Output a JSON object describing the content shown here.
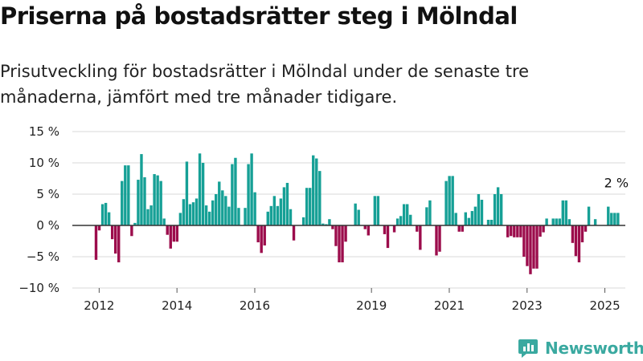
{
  "header": {
    "title": "Priserna på bostadsrätter steg i Mölndal",
    "subtitle": "Prisutveckling för bostadsrätter i Mölndal under de senaste tre månaderna, jämfört med tre månader tidigare."
  },
  "brand": {
    "name": "Newsworthy",
    "icon": "newsworthy-logo-icon",
    "color": "#3aa9a0"
  },
  "colors": {
    "positive": "#16a096",
    "negative": "#9c0d4c",
    "grid": "#d9d9d9",
    "zero": "#333333"
  },
  "chart_data": {
    "type": "bar",
    "title": "",
    "xlabel": "",
    "ylabel": "",
    "ylim": [
      -10,
      15
    ],
    "y_ticks": [
      15,
      10,
      5,
      0,
      -5,
      -10
    ],
    "y_tick_labels": [
      "15 %",
      "10 %",
      "5 %",
      "0 %",
      "−5 %",
      "−10 %"
    ],
    "x_ticks": [
      2012,
      2014,
      2016,
      2019,
      2021,
      2023,
      2025
    ],
    "x_tick_labels": [
      "2012",
      "2014",
      "2016",
      "2019",
      "2021",
      "2023",
      "2025"
    ],
    "grid": true,
    "start_year": 2011.92,
    "months_per_bar": 1,
    "annotation": {
      "text": "2 %",
      "target": "last"
    },
    "values": [
      -5.5,
      -0.8,
      3.4,
      3.6,
      2.1,
      -2.2,
      -4.5,
      -5.9,
      7.1,
      9.6,
      9.6,
      -1.7,
      0.4,
      7.3,
      11.4,
      7.7,
      2.6,
      3.2,
      8.2,
      8.0,
      7.1,
      1.1,
      -1.5,
      -3.7,
      -2.6,
      -2.6,
      2.0,
      4.2,
      10.2,
      3.4,
      3.7,
      4.3,
      11.5,
      10.0,
      3.2,
      2.2,
      4.0,
      5.0,
      7.0,
      5.6,
      4.7,
      3.0,
      9.8,
      10.8,
      2.8,
      0.0,
      2.8,
      9.8,
      11.5,
      5.3,
      -2.7,
      -4.4,
      -3.2,
      2.2,
      3.1,
      4.7,
      3.1,
      4.3,
      6.1,
      6.8,
      2.6,
      -2.4,
      0.0,
      0.0,
      1.3,
      6.0,
      6.0,
      11.2,
      10.7,
      8.7,
      0.3,
      0.2,
      1.0,
      -0.6,
      -3.3,
      -5.9,
      -5.9,
      -2.6,
      0.0,
      0.0,
      3.5,
      2.5,
      0.0,
      -0.6,
      -1.6,
      0.0,
      4.7,
      4.7,
      0.0,
      -1.4,
      -3.6,
      0.0,
      -1.1,
      1.1,
      1.5,
      3.4,
      3.4,
      1.7,
      0.0,
      -1.0,
      -3.9,
      0.0,
      2.9,
      4.0,
      0.0,
      -4.8,
      -4.2,
      0.0,
      7.1,
      7.9,
      7.9,
      2.0,
      -1.0,
      -1.0,
      2.1,
      1.2,
      2.3,
      3.0,
      5.0,
      4.1,
      0.0,
      0.9,
      0.9,
      5.0,
      6.1,
      5.0,
      0.0,
      -1.9,
      -1.7,
      -1.9,
      -1.9,
      -1.9,
      -5.0,
      -6.5,
      -7.8,
      -6.9,
      -6.9,
      -1.8,
      -1.1,
      1.1,
      0.0,
      1.1,
      1.1,
      1.1,
      4.0,
      4.0,
      1.0,
      -2.8,
      -4.9,
      -5.9,
      -2.7,
      -1.0,
      3.0,
      0.0,
      1.0,
      0.0,
      0.0,
      0.0,
      3.0,
      2.0,
      2.0,
      2.0
    ]
  }
}
